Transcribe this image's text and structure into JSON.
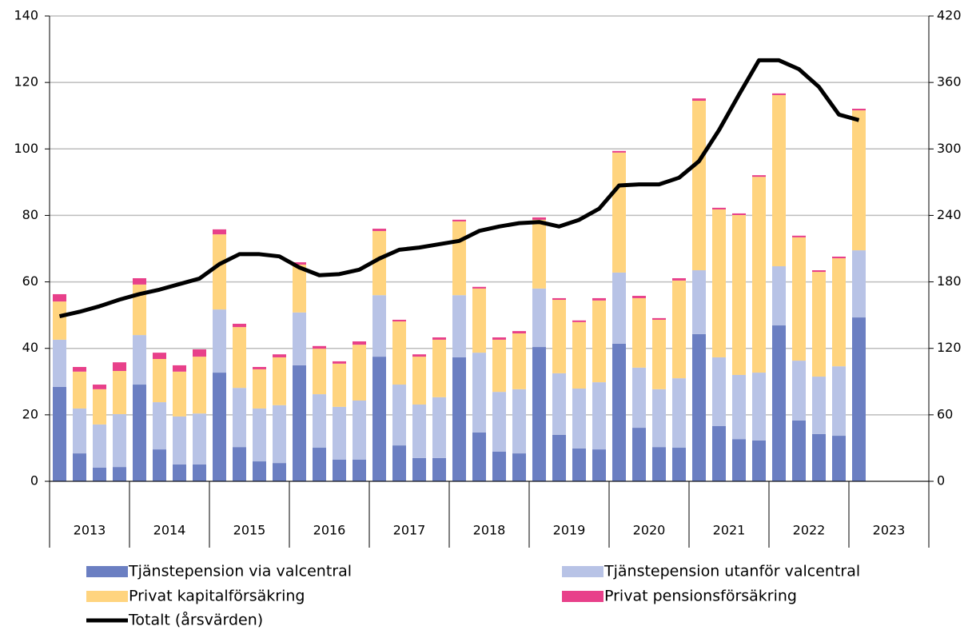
{
  "chart_data": {
    "type": "bar",
    "categories": [
      null,
      null,
      null,
      null,
      null,
      null,
      null,
      null,
      null,
      null,
      null,
      null,
      null,
      null,
      null,
      null,
      null,
      null,
      null,
      null,
      null,
      null,
      null,
      null,
      null,
      null,
      null,
      null,
      null,
      null,
      null,
      null,
      null,
      null,
      null,
      null,
      null,
      null,
      null,
      null,
      null
    ],
    "groups": [
      "2013",
      "2014",
      "2015",
      "2016",
      "2017",
      "2018",
      "2019",
      "2020",
      "2021",
      "2022",
      "2023"
    ],
    "series": [
      {
        "name": "Tjänstepension via valcentral",
        "color": "#6b7fc2",
        "values": [
          28.4,
          8.4,
          4.1,
          4.3,
          29.1,
          9.6,
          5.1,
          5.1,
          32.7,
          10.3,
          6.0,
          5.5,
          34.9,
          10.1,
          6.5,
          6.5,
          37.5,
          10.8,
          7.0,
          7.0,
          37.3,
          14.7,
          8.9,
          8.4,
          40.4,
          14.0,
          9.9,
          9.6,
          41.4,
          16.1,
          10.3,
          10.1,
          44.3,
          16.6,
          12.7,
          12.3,
          46.9,
          18.3,
          14.2,
          13.7,
          49.3
        ]
      },
      {
        "name": "Tjänstepension utanför valcentral",
        "color": "#b8c3e6",
        "values": [
          14.2,
          13.5,
          13.0,
          15.9,
          14.9,
          14.2,
          14.4,
          15.3,
          19.0,
          17.8,
          15.9,
          17.4,
          15.9,
          16.1,
          15.9,
          17.8,
          18.5,
          18.3,
          16.1,
          18.3,
          18.7,
          24.0,
          18.0,
          19.3,
          17.6,
          18.5,
          18.0,
          20.2,
          21.4,
          18.1,
          17.4,
          20.9,
          19.2,
          20.7,
          19.3,
          20.4,
          17.8,
          18.0,
          17.3,
          20.9,
          20.2
        ]
      },
      {
        "name": "Privat kapitalförsäkring",
        "color": "#ffd47f",
        "values": [
          11.5,
          11.1,
          10.6,
          13.0,
          15.2,
          13.0,
          13.5,
          17.1,
          22.6,
          18.3,
          11.8,
          14.4,
          14.4,
          13.7,
          13.0,
          16.8,
          19.3,
          19.0,
          14.4,
          17.3,
          22.2,
          19.3,
          15.7,
          16.8,
          20.7,
          22.1,
          20.0,
          24.6,
          36.1,
          20.9,
          20.9,
          29.4,
          51.0,
          44.5,
          48.1,
          58.9,
          51.5,
          37.1,
          31.5,
          32.5,
          42.1
        ]
      },
      {
        "name": "Privat pensionsförsäkring",
        "color": "#e8408a",
        "values": [
          2.2,
          1.4,
          1.4,
          2.6,
          1.9,
          1.9,
          1.9,
          2.2,
          1.5,
          1.0,
          0.7,
          0.9,
          0.7,
          0.8,
          0.7,
          1.0,
          0.7,
          0.5,
          0.7,
          0.7,
          0.5,
          0.5,
          0.7,
          0.7,
          0.7,
          0.5,
          0.5,
          0.7,
          0.5,
          0.7,
          0.5,
          0.7,
          0.7,
          0.5,
          0.5,
          0.5,
          0.5,
          0.5,
          0.5,
          0.5,
          0.5
        ]
      },
      {
        "name": "Totalt (årsvärden)",
        "color": "#000000",
        "type": "line",
        "axis": "y2",
        "values": [
          149,
          153,
          158,
          164,
          169,
          173,
          178,
          183,
          196,
          205,
          205,
          203,
          193,
          186,
          187,
          191,
          201,
          209,
          211,
          214,
          217,
          226,
          230,
          233,
          234,
          230,
          236,
          246,
          267,
          268,
          268,
          274,
          289,
          317,
          349,
          380,
          380,
          372,
          356,
          331,
          326
        ]
      }
    ],
    "ylim": [
      0,
      140
    ],
    "yticks": [
      0,
      20,
      40,
      60,
      80,
      100,
      120,
      140
    ],
    "y2lim": [
      0,
      420
    ],
    "y2ticks": [
      0,
      60,
      120,
      180,
      240,
      300,
      360,
      420
    ],
    "grid": true
  }
}
